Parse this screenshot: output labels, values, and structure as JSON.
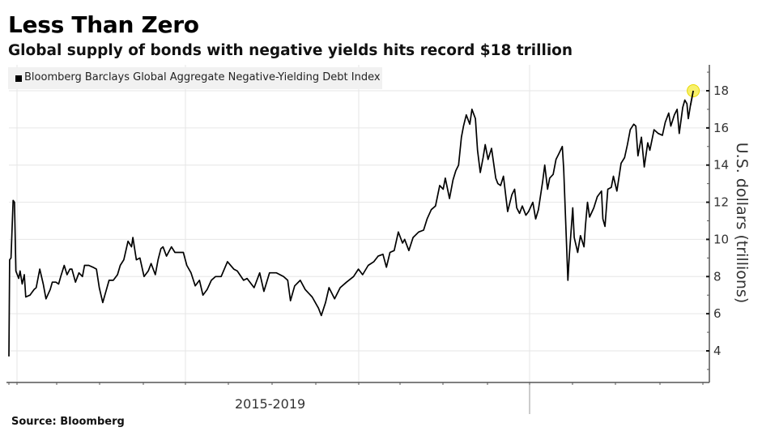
{
  "header": {
    "title": "Less Than Zero",
    "subtitle": "Global supply of bonds with negative yields hits record $18 trillion"
  },
  "footer": {
    "source": "Source: Bloomberg"
  },
  "colors": {
    "line": "#000000",
    "highlight": "#f5ec3a",
    "grid": "#e6e6e6",
    "axis": "#555555",
    "legend_bg": "#f1f1f1"
  },
  "chart_data": {
    "type": "line",
    "title": "Less Than Zero",
    "subtitle": "Global supply of bonds with negative yields hits record $18 trillion",
    "xlabel": "2015-2019",
    "ylabel": "U.S. dollars (trillions)",
    "x_units": "fraction of 2015-2019 time span",
    "ylim": [
      2.3,
      19.4
    ],
    "yticks": [
      4,
      6,
      8,
      10,
      12,
      14,
      16,
      18
    ],
    "ytick_labels": [
      "4",
      "6",
      "8",
      "10",
      "12",
      "14",
      "16",
      "18"
    ],
    "y_axis_side": "right",
    "grid": true,
    "legend_position": "top-left",
    "highlight_last_point": true,
    "series": [
      {
        "name": "Bloomberg Barclays Global Aggregate Negative-Yielding Debt Index",
        "points": [
          [
            0.0,
            3.7
          ],
          [
            0.001,
            8.9
          ],
          [
            0.003,
            9.0
          ],
          [
            0.006,
            12.1
          ],
          [
            0.008,
            12.0
          ],
          [
            0.01,
            8.3
          ],
          [
            0.014,
            7.9
          ],
          [
            0.016,
            8.3
          ],
          [
            0.019,
            7.6
          ],
          [
            0.022,
            8.1
          ],
          [
            0.024,
            6.9
          ],
          [
            0.03,
            7.0
          ],
          [
            0.036,
            7.3
          ],
          [
            0.039,
            7.4
          ],
          [
            0.044,
            8.4
          ],
          [
            0.049,
            7.6
          ],
          [
            0.053,
            6.8
          ],
          [
            0.059,
            7.3
          ],
          [
            0.062,
            7.7
          ],
          [
            0.067,
            7.7
          ],
          [
            0.071,
            7.6
          ],
          [
            0.074,
            8.0
          ],
          [
            0.079,
            8.6
          ],
          [
            0.083,
            8.1
          ],
          [
            0.087,
            8.4
          ],
          [
            0.09,
            8.4
          ],
          [
            0.095,
            7.7
          ],
          [
            0.1,
            8.2
          ],
          [
            0.105,
            8.0
          ],
          [
            0.108,
            8.6
          ],
          [
            0.114,
            8.6
          ],
          [
            0.12,
            8.5
          ],
          [
            0.125,
            8.4
          ],
          [
            0.129,
            7.4
          ],
          [
            0.134,
            6.6
          ],
          [
            0.137,
            7.0
          ],
          [
            0.143,
            7.8
          ],
          [
            0.149,
            7.8
          ],
          [
            0.155,
            8.1
          ],
          [
            0.159,
            8.6
          ],
          [
            0.164,
            8.9
          ],
          [
            0.17,
            9.9
          ],
          [
            0.175,
            9.6
          ],
          [
            0.177,
            10.1
          ],
          [
            0.182,
            8.9
          ],
          [
            0.187,
            9.0
          ],
          [
            0.193,
            8.0
          ],
          [
            0.199,
            8.3
          ],
          [
            0.203,
            8.7
          ],
          [
            0.209,
            8.1
          ],
          [
            0.213,
            8.9
          ],
          [
            0.217,
            9.5
          ],
          [
            0.22,
            9.6
          ],
          [
            0.225,
            9.1
          ],
          [
            0.232,
            9.6
          ],
          [
            0.237,
            9.3
          ],
          [
            0.243,
            9.3
          ],
          [
            0.249,
            9.3
          ],
          [
            0.254,
            8.6
          ],
          [
            0.26,
            8.2
          ],
          [
            0.266,
            7.5
          ],
          [
            0.272,
            7.8
          ],
          [
            0.277,
            7.0
          ],
          [
            0.283,
            7.3
          ],
          [
            0.289,
            7.8
          ],
          [
            0.295,
            8.0
          ],
          [
            0.303,
            8.0
          ],
          [
            0.312,
            8.8
          ],
          [
            0.321,
            8.4
          ],
          [
            0.326,
            8.3
          ],
          [
            0.335,
            7.8
          ],
          [
            0.34,
            7.9
          ],
          [
            0.35,
            7.4
          ],
          [
            0.358,
            8.2
          ],
          [
            0.364,
            7.2
          ],
          [
            0.372,
            8.2
          ],
          [
            0.382,
            8.2
          ],
          [
            0.392,
            8.0
          ],
          [
            0.398,
            7.8
          ],
          [
            0.402,
            6.7
          ],
          [
            0.408,
            7.5
          ],
          [
            0.416,
            7.8
          ],
          [
            0.423,
            7.3
          ],
          [
            0.433,
            6.9
          ],
          [
            0.442,
            6.3
          ],
          [
            0.446,
            5.9
          ],
          [
            0.452,
            6.6
          ],
          [
            0.457,
            7.4
          ],
          [
            0.465,
            6.8
          ],
          [
            0.473,
            7.4
          ],
          [
            0.482,
            7.7
          ],
          [
            0.492,
            8.0
          ],
          [
            0.499,
            8.4
          ],
          [
            0.505,
            8.1
          ],
          [
            0.513,
            8.6
          ],
          [
            0.521,
            8.8
          ],
          [
            0.527,
            9.1
          ],
          [
            0.534,
            9.2
          ],
          [
            0.539,
            8.5
          ],
          [
            0.544,
            9.3
          ],
          [
            0.55,
            9.4
          ],
          [
            0.556,
            10.4
          ],
          [
            0.562,
            9.8
          ],
          [
            0.565,
            10.0
          ],
          [
            0.571,
            9.4
          ],
          [
            0.577,
            10.1
          ],
          [
            0.585,
            10.4
          ],
          [
            0.592,
            10.5
          ],
          [
            0.597,
            11.1
          ],
          [
            0.603,
            11.6
          ],
          [
            0.609,
            11.8
          ],
          [
            0.615,
            12.9
          ],
          [
            0.62,
            12.7
          ],
          [
            0.623,
            13.3
          ],
          [
            0.629,
            12.2
          ],
          [
            0.634,
            13.2
          ],
          [
            0.638,
            13.7
          ],
          [
            0.642,
            14.0
          ],
          [
            0.646,
            15.5
          ],
          [
            0.649,
            16.1
          ],
          [
            0.653,
            16.7
          ],
          [
            0.658,
            16.2
          ],
          [
            0.661,
            17.0
          ],
          [
            0.666,
            16.5
          ],
          [
            0.669,
            14.8
          ],
          [
            0.673,
            13.6
          ],
          [
            0.677,
            14.4
          ],
          [
            0.68,
            15.1
          ],
          [
            0.684,
            14.3
          ],
          [
            0.689,
            14.9
          ],
          [
            0.695,
            13.3
          ],
          [
            0.698,
            13.0
          ],
          [
            0.702,
            12.9
          ],
          [
            0.706,
            13.4
          ],
          [
            0.712,
            11.5
          ],
          [
            0.718,
            12.4
          ],
          [
            0.722,
            12.7
          ],
          [
            0.725,
            11.7
          ],
          [
            0.729,
            11.4
          ],
          [
            0.733,
            11.8
          ],
          [
            0.738,
            11.3
          ],
          [
            0.742,
            11.5
          ],
          [
            0.748,
            12.0
          ],
          [
            0.752,
            11.1
          ],
          [
            0.756,
            11.6
          ],
          [
            0.762,
            13.1
          ],
          [
            0.765,
            14.0
          ],
          [
            0.769,
            12.7
          ],
          [
            0.772,
            13.3
          ],
          [
            0.777,
            13.5
          ],
          [
            0.781,
            14.3
          ],
          [
            0.785,
            14.6
          ],
          [
            0.79,
            15.0
          ],
          [
            0.792,
            13.8
          ],
          [
            0.798,
            7.8
          ],
          [
            0.8,
            9.1
          ],
          [
            0.805,
            11.7
          ],
          [
            0.807,
            10.1
          ],
          [
            0.812,
            9.3
          ],
          [
            0.816,
            10.2
          ],
          [
            0.821,
            9.6
          ],
          [
            0.823,
            10.7
          ],
          [
            0.826,
            12.0
          ],
          [
            0.829,
            11.2
          ],
          [
            0.835,
            11.7
          ],
          [
            0.84,
            12.3
          ],
          [
            0.846,
            12.6
          ],
          [
            0.848,
            11.1
          ],
          [
            0.851,
            10.7
          ],
          [
            0.855,
            12.7
          ],
          [
            0.86,
            12.8
          ],
          [
            0.863,
            13.4
          ],
          [
            0.868,
            12.6
          ],
          [
            0.874,
            14.1
          ],
          [
            0.879,
            14.4
          ],
          [
            0.883,
            15.1
          ],
          [
            0.887,
            15.9
          ],
          [
            0.892,
            16.2
          ],
          [
            0.895,
            16.1
          ],
          [
            0.898,
            14.5
          ],
          [
            0.903,
            15.5
          ],
          [
            0.907,
            13.9
          ],
          [
            0.912,
            15.2
          ],
          [
            0.915,
            14.8
          ],
          [
            0.921,
            15.9
          ],
          [
            0.927,
            15.7
          ],
          [
            0.933,
            15.6
          ],
          [
            0.937,
            16.3
          ],
          [
            0.942,
            16.8
          ],
          [
            0.945,
            16.1
          ],
          [
            0.95,
            16.7
          ],
          [
            0.954,
            17.0
          ],
          [
            0.957,
            15.7
          ],
          [
            0.962,
            17.1
          ],
          [
            0.965,
            17.5
          ],
          [
            0.968,
            17.3
          ],
          [
            0.97,
            16.5
          ],
          [
            0.973,
            17.2
          ],
          [
            0.977,
            18.0
          ]
        ]
      }
    ]
  },
  "legend": {
    "items": [
      {
        "label": "Bloomberg Barclays Global Aggregate Negative-Yielding Debt Index"
      }
    ]
  }
}
